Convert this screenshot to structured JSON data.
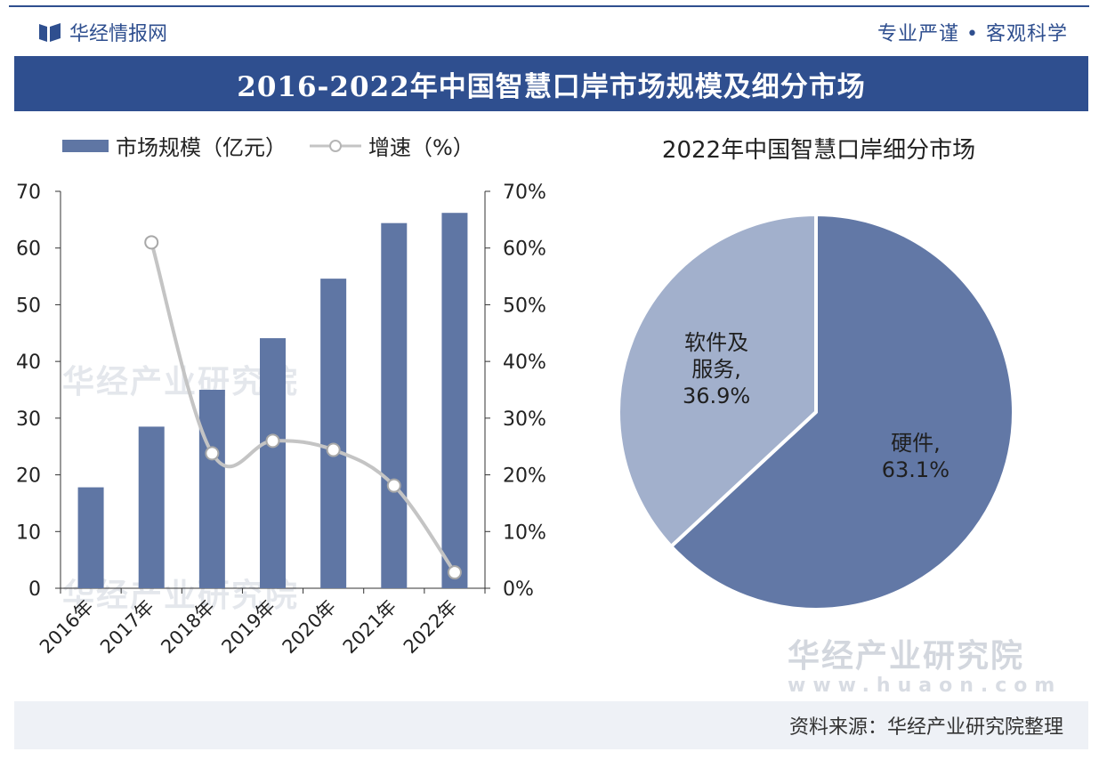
{
  "header": {
    "brand": "华经情报网",
    "slogan": "专业严谨 • 客观科学"
  },
  "title": "2016-2022年中国智慧口岸市场规模及细分市场",
  "legend": {
    "bar_label": "市场规模（亿元）",
    "line_label": "增速（%）"
  },
  "watermark": {
    "text": "华经产业研究院",
    "url": "www.huaon.com"
  },
  "footer": {
    "source": "资料来源：华经产业研究院整理"
  },
  "colors": {
    "primary": "#2f4f8f",
    "bar": "#5f76a4",
    "line": "#c4c4c4",
    "pie_hardware": "#6278a6",
    "pie_software": "#a2b0cc"
  },
  "chart_data": [
    {
      "type": "bar",
      "title": "",
      "categories": [
        "2016年",
        "2017年",
        "2018年",
        "2019年",
        "2020年",
        "2021年",
        "2022年"
      ],
      "series": [
        {
          "name": "市场规模（亿元）",
          "type": "bar",
          "axis": "left",
          "values": [
            17.8,
            28.5,
            35.0,
            44.1,
            54.6,
            64.4,
            66.2
          ]
        },
        {
          "name": "增速（%）",
          "type": "line",
          "axis": "right",
          "values": [
            null,
            61.0,
            23.8,
            26.0,
            24.4,
            18.1,
            2.8
          ]
        }
      ],
      "y_left": {
        "min": 0,
        "max": 70,
        "step": 10,
        "ticks": [
          "0",
          "10",
          "20",
          "30",
          "40",
          "50",
          "60",
          "70"
        ]
      },
      "y_right": {
        "min": 0,
        "max": 70,
        "step": 10,
        "ticks": [
          "0%",
          "10%",
          "20%",
          "30%",
          "40%",
          "50%",
          "60%",
          "70%"
        ]
      },
      "xlabel": "",
      "ylabel": ""
    },
    {
      "type": "pie",
      "title": "2022年中国智慧口岸细分市场",
      "slices": [
        {
          "name": "硬件",
          "value": 63.1,
          "label": "硬件,",
          "pct_label": "63.1%"
        },
        {
          "name": "软件及服务",
          "value": 36.9,
          "label_lines": [
            "软件及",
            "服务,"
          ],
          "pct_label": "36.9%"
        }
      ]
    }
  ]
}
